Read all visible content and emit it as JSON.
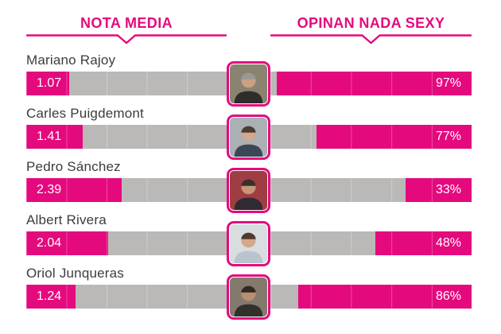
{
  "accent_color": "#E5097E",
  "track_color": "#BBB9B8",
  "name_color": "#3E3B3C",
  "headers": {
    "left": "NOTA MEDIA",
    "right": "OPINAN NADA SEXY"
  },
  "scale": {
    "left_max": 5,
    "right_max": 100
  },
  "people": [
    {
      "name": "Mariano Rajoy",
      "nota": "1.07",
      "nota_value": 1.07,
      "pct": "97%",
      "pct_value": 97,
      "photo": {
        "bg": "#89836F",
        "skin": "#CAA183",
        "hair": "#9A9894",
        "suit": "#2E2D2B"
      }
    },
    {
      "name": "Carles Puigdemont",
      "nota": "1.41",
      "nota_value": 1.41,
      "pct": "77%",
      "pct_value": 77,
      "photo": {
        "bg": "#AAB0B4",
        "skin": "#D0A98E",
        "hair": "#4A3D33",
        "suit": "#3C4654"
      }
    },
    {
      "name": "Pedro Sánchez",
      "nota": "2.39",
      "nota_value": 2.39,
      "pct": "33%",
      "pct_value": 33,
      "photo": {
        "bg": "#9E3D42",
        "skin": "#C99577",
        "hair": "#3A2F2A",
        "suit": "#2F2A33"
      }
    },
    {
      "name": "Albert Rivera",
      "nota": "2.04",
      "nota_value": 2.04,
      "pct": "48%",
      "pct_value": 48,
      "photo": {
        "bg": "#D9DDE0",
        "skin": "#D4A88B",
        "hair": "#4E3B2F",
        "suit": "#B9C4CF"
      }
    },
    {
      "name": "Oriol Junqueras",
      "nota": "1.24",
      "nota_value": 1.24,
      "pct": "86%",
      "pct_value": 86,
      "photo": {
        "bg": "#837A6D",
        "skin": "#B98E72",
        "hair": "#31281F",
        "suit": "#33302C"
      }
    }
  ],
  "chart_data": {
    "type": "bar",
    "orientation": "horizontal",
    "title": "",
    "categories": [
      "Mariano Rajoy",
      "Carles Puigdemont",
      "Pedro Sánchez",
      "Albert Rivera",
      "Oriol Junqueras"
    ],
    "series": [
      {
        "name": "NOTA MEDIA",
        "values": [
          1.07,
          1.41,
          2.39,
          2.04,
          1.24
        ],
        "axis_range": [
          0,
          5
        ],
        "direction": "left-to-right"
      },
      {
        "name": "OPINAN NADA SEXY",
        "values": [
          97,
          77,
          33,
          48,
          86
        ],
        "unit": "%",
        "axis_range": [
          0,
          100
        ],
        "direction": "right-to-left"
      }
    ],
    "legend_position": "top",
    "grid": "faint 20% segment dividers inside bars",
    "annotations": "value printed inside filled segment of each bar"
  }
}
